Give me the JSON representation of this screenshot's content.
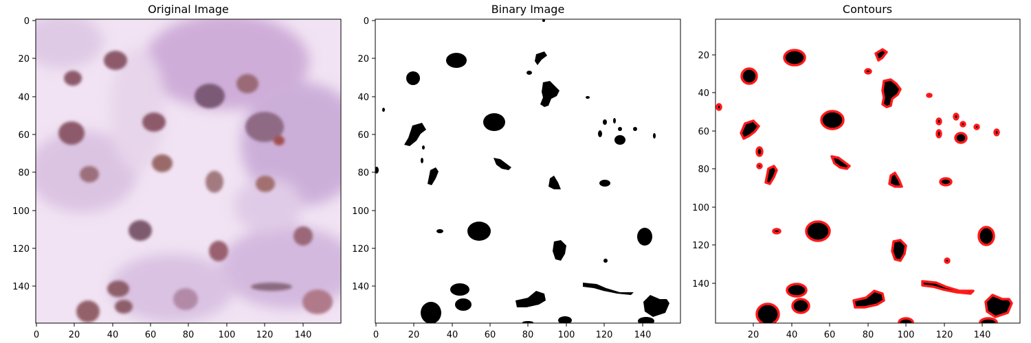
{
  "figure": {
    "panels": [
      {
        "title": "Original Image",
        "xticks": [
          "0",
          "20",
          "40",
          "60",
          "80",
          "100",
          "120",
          "140"
        ],
        "yticks": [
          "0",
          "20",
          "40",
          "60",
          "80",
          "100",
          "120",
          "140"
        ]
      },
      {
        "title": "Binary Image",
        "xticks": [
          "0",
          "20",
          "40",
          "60",
          "80",
          "100",
          "120",
          "140"
        ],
        "yticks": [
          "0",
          "20",
          "40",
          "60",
          "80",
          "100",
          "120",
          "140"
        ]
      },
      {
        "title": "Contours",
        "xticks": [
          "20",
          "40",
          "60",
          "80",
          "100",
          "120",
          "140"
        ],
        "yticks": [
          "20",
          "40",
          "60",
          "80",
          "100",
          "120",
          "140"
        ]
      }
    ],
    "colors": {
      "tissue_background": "#efe0f2",
      "tissue_purple": "#c7a6d6",
      "nucleus_brown": "#8c5a66",
      "binary_blob": "#000000",
      "contour_line": "#ff1a1a"
    }
  }
}
